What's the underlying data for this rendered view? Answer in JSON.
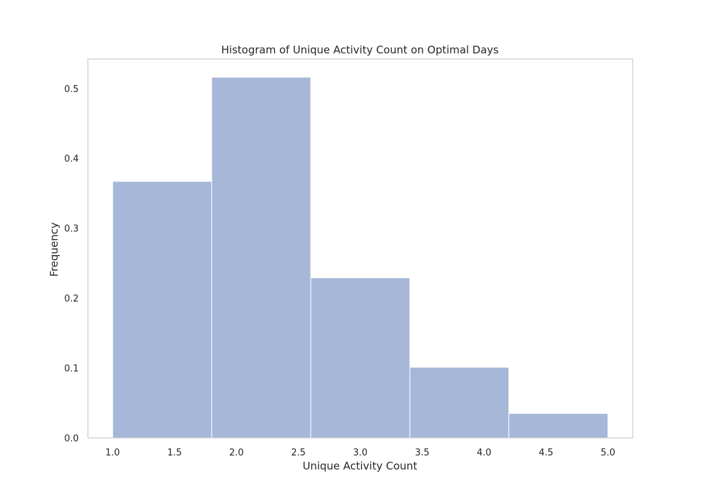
{
  "chart_data": {
    "type": "bar",
    "subtype": "histogram",
    "title": "Histogram of Unique Activity Count on Optimal Days",
    "xlabel": "Unique Activity Count",
    "ylabel": "Frequency",
    "bins": [
      {
        "x0": 1.0,
        "x1": 1.8,
        "value": 0.367
      },
      {
        "x0": 1.8,
        "x1": 2.6,
        "value": 0.516
      },
      {
        "x0": 2.6,
        "x1": 3.4,
        "value": 0.229
      },
      {
        "x0": 3.4,
        "x1": 4.2,
        "value": 0.101
      },
      {
        "x0": 4.2,
        "x1": 5.0,
        "value": 0.035
      }
    ],
    "xlim": [
      0.8,
      5.2
    ],
    "ylim": [
      0,
      0.542
    ],
    "xticks": [
      "1.0",
      "1.5",
      "2.0",
      "2.5",
      "3.0",
      "3.5",
      "4.0",
      "4.5",
      "5.0"
    ],
    "yticks": [
      "0.0",
      "0.1",
      "0.2",
      "0.3",
      "0.4",
      "0.5"
    ],
    "grid": false,
    "legend": "none",
    "colors": {
      "bar_fill": "#a6b7d8",
      "bar_edge": "#ffffff",
      "frame": "#cccccc",
      "text": "#262626"
    }
  }
}
